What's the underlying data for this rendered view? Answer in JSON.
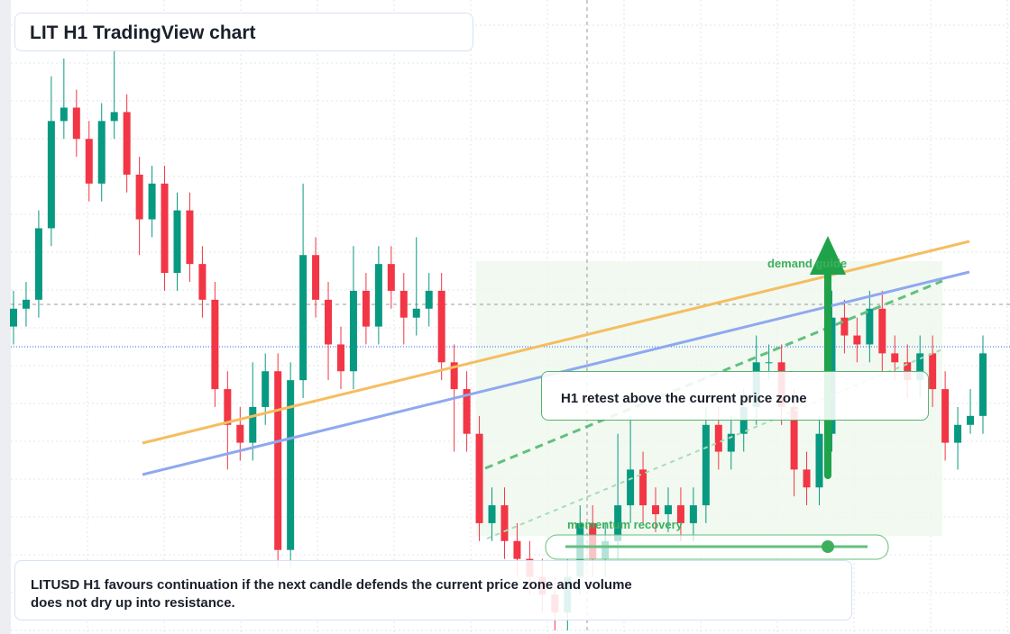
{
  "chart_data": {
    "type": "candlestick",
    "title": "LIT H1 TradingView chart",
    "annotations": [
      "demand guide",
      "momentum recovery",
      "H1 retest above the current price zone"
    ],
    "caption": "LITUSD H1 favours continuation if the next candle defends the current price zone and volume does not dry up into resistance.",
    "up_color": "#089981",
    "down_color": "#f23645",
    "open": [
      34,
      36,
      37,
      45,
      57,
      58.5,
      55,
      50,
      57,
      58,
      51,
      46,
      50,
      40,
      47,
      41,
      37,
      27,
      23,
      21,
      25,
      29,
      9,
      28,
      42,
      37,
      32,
      29,
      38,
      34,
      41,
      38,
      35,
      36,
      38,
      30,
      27,
      22,
      12,
      14,
      10,
      8,
      6,
      4,
      2,
      6,
      12,
      8,
      10,
      14,
      18,
      14,
      13,
      14,
      12,
      14,
      23,
      20,
      22,
      25,
      30,
      30,
      25,
      18,
      16,
      22,
      35,
      33,
      32,
      36,
      31,
      30,
      28,
      31,
      27,
      21,
      23,
      24
    ],
    "high": [
      38,
      39,
      47,
      62,
      64,
      60.5,
      57,
      59,
      65,
      60,
      53,
      52,
      52,
      49,
      49,
      43,
      39,
      29,
      25,
      30,
      31,
      31,
      30,
      50,
      44,
      39,
      34,
      43,
      40,
      43,
      43,
      40,
      44,
      40,
      40,
      32,
      29,
      24,
      16,
      16,
      12,
      10,
      8,
      6,
      8,
      14,
      14,
      12,
      22,
      24,
      20,
      16,
      16,
      16,
      16,
      25,
      25,
      24,
      27,
      33,
      32,
      32,
      27,
      20,
      24,
      38,
      37,
      35,
      38,
      38,
      33,
      32,
      33,
      33,
      29,
      25,
      27,
      33
    ],
    "low": [
      32,
      34,
      35,
      43,
      55,
      53,
      48,
      48,
      55,
      49,
      42,
      44,
      38,
      38,
      39,
      35,
      25,
      18,
      19,
      19,
      23,
      7,
      7,
      26,
      35,
      28,
      27,
      27,
      32,
      32,
      36,
      32,
      33,
      34,
      28,
      20,
      20,
      10,
      10,
      8,
      6,
      4,
      2,
      0,
      0,
      4,
      6,
      6,
      8,
      12,
      12,
      11,
      11,
      10,
      10,
      12,
      18,
      18,
      20,
      23,
      28,
      23,
      15,
      14,
      14,
      20,
      31,
      30,
      30,
      29,
      28,
      26,
      26,
      25,
      19,
      18,
      22,
      22
    ],
    "close": [
      36,
      37,
      45,
      57,
      58.5,
      55,
      50,
      57,
      58,
      51,
      46,
      50,
      40,
      47,
      41,
      37,
      27,
      23,
      21,
      25,
      29,
      9,
      28,
      42,
      37,
      32,
      29,
      38,
      34,
      41,
      38,
      35,
      36,
      38,
      30,
      27,
      22,
      12,
      14,
      10,
      8,
      6,
      4,
      2,
      6,
      12,
      8,
      10,
      14,
      18,
      14,
      13,
      14,
      12,
      14,
      23,
      20,
      22,
      25,
      30,
      30,
      25,
      18,
      16,
      22,
      35,
      33,
      32,
      36,
      31,
      30,
      28,
      31,
      27,
      21,
      23,
      24,
      31
    ]
  }
}
